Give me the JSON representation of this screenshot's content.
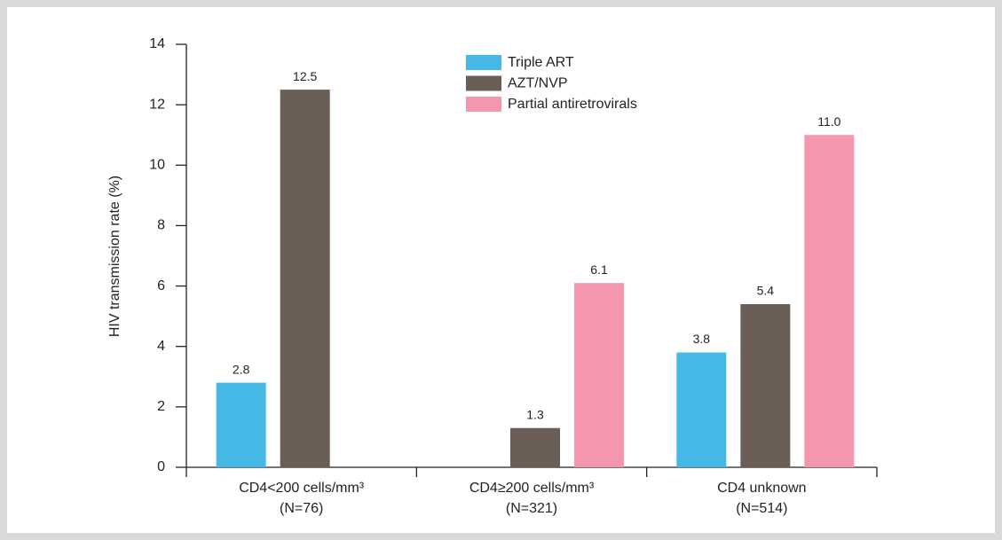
{
  "chart_data": {
    "type": "bar",
    "y_label": "HIV transmission rate (%)",
    "categories": [
      [
        "CD4<200 cells/mm³",
        "(N=76)"
      ],
      [
        "CD4≥200 cells/mm³",
        "(N=321)"
      ],
      [
        "CD4 unknown",
        "(N=514)"
      ]
    ],
    "series": [
      {
        "name": "Triple ART",
        "color": "#45b8e6",
        "values": [
          2.8,
          null,
          3.8
        ],
        "value_labels": [
          "2.8",
          null,
          "3.8"
        ]
      },
      {
        "name": "AZT/NVP",
        "color": "#6b5e57",
        "values": [
          12.5,
          1.3,
          5.4
        ],
        "value_labels": [
          "12.5",
          "1.3",
          "5.4"
        ]
      },
      {
        "name": "Partial antiretrovirals",
        "color": "#f497ae",
        "values": [
          null,
          6.1,
          11.0
        ],
        "value_labels": [
          null,
          "6.1",
          "11.0"
        ]
      }
    ],
    "ylim": [
      0,
      14
    ],
    "yticks": [
      0,
      2,
      4,
      6,
      8,
      10,
      12,
      14
    ]
  }
}
